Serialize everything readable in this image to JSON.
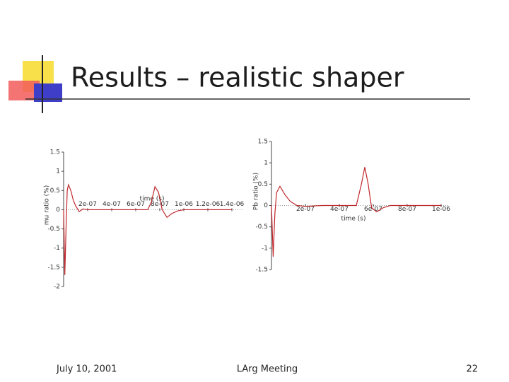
{
  "slide": {
    "title": "Results – realistic shaper",
    "date": "July 10, 2001",
    "event": "LArg Meeting",
    "page": "22"
  },
  "chart_data": [
    {
      "type": "line",
      "xlabel": "time (s)",
      "ylabel": "mu ratio (%)",
      "x": [
        0,
        1e-08,
        2e-08,
        3e-08,
        4e-08,
        6e-08,
        8e-08,
        1e-07,
        1.3e-07,
        1.6e-07,
        2e-07,
        3e-07,
        5e-07,
        7e-07,
        7.3e-07,
        7.6e-07,
        7.9e-07,
        8.2e-07,
        8.6e-07,
        9e-07,
        9.5e-07,
        1e-06,
        1.2e-06,
        1.4e-06
      ],
      "series": [
        {
          "color": "#c0282c",
          "values": [
            0,
            -1.7,
            -0.5,
            0.5,
            0.65,
            0.5,
            0.25,
            0.1,
            -0.05,
            0.02,
            0,
            0,
            0,
            0,
            0.2,
            0.6,
            0.45,
            0,
            -0.2,
            -0.1,
            -0.03,
            0,
            0,
            0
          ]
        }
      ],
      "xlim": [
        0,
        1.5e-06
      ],
      "xticks": [
        {
          "value": 2e-07,
          "label": "2e-07"
        },
        {
          "value": 4e-07,
          "label": "4e-07"
        },
        {
          "value": 6e-07,
          "label": "6e-07"
        },
        {
          "value": 8e-07,
          "label": "8e-07"
        },
        {
          "value": 1e-06,
          "label": "1e-06"
        },
        {
          "value": 1.2e-06,
          "label": "1.2e-06"
        },
        {
          "value": 1.4e-06,
          "label": "1.4e-06"
        }
      ],
      "ylim": [
        -2,
        1.5
      ],
      "yticks": [
        -2,
        -1.5,
        -1,
        -0.5,
        0,
        0.5,
        1,
        1.5
      ]
    },
    {
      "type": "line",
      "xlabel": "time (s)",
      "ylabel": "Pb ratio (%)",
      "x": [
        0,
        1e-08,
        2e-08,
        3e-08,
        5e-08,
        8e-08,
        1.1e-07,
        1.5e-07,
        2e-07,
        3e-07,
        5e-07,
        5.3e-07,
        5.5e-07,
        5.7e-07,
        5.9e-07,
        6.2e-07,
        6.6e-07,
        7e-07,
        8e-07,
        1e-06
      ],
      "series": [
        {
          "color": "#c0282c",
          "values": [
            0,
            -1.2,
            -0.2,
            0.3,
            0.45,
            0.25,
            0.1,
            0,
            -0.02,
            0,
            0,
            0.5,
            0.9,
            0.5,
            -0.05,
            -0.15,
            -0.05,
            0,
            0,
            0
          ]
        }
      ],
      "xlim": [
        0,
        1.05e-06
      ],
      "xticks": [
        {
          "value": 2e-07,
          "label": "2e-07"
        },
        {
          "value": 4e-07,
          "label": "4e-07"
        },
        {
          "value": 6e-07,
          "label": "6e-07"
        },
        {
          "value": 8e-07,
          "label": "8e-07"
        },
        {
          "value": 1e-06,
          "label": "1e-06"
        }
      ],
      "ylim": [
        -1.5,
        1.5
      ],
      "yticks": [
        -1.5,
        -1,
        -0.5,
        0,
        0.5,
        1,
        1.5
      ]
    }
  ]
}
